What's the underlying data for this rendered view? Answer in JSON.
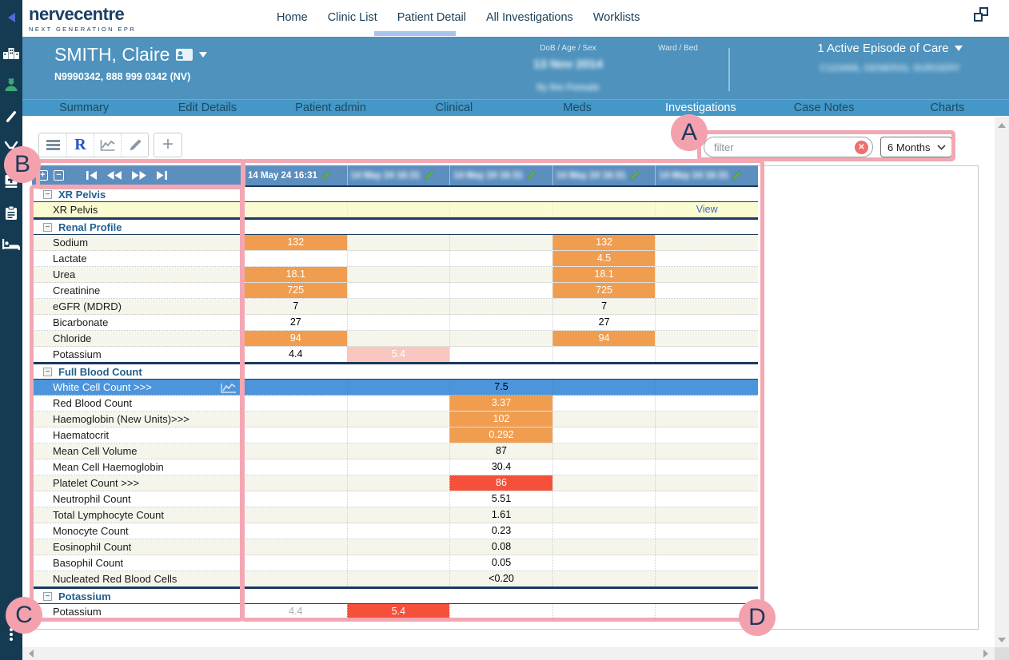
{
  "app": {
    "logo_title": "nervecentre",
    "logo_subtitle": "NEXT GENERATION EPR"
  },
  "top_nav": {
    "items": [
      {
        "label": "Home",
        "active": false
      },
      {
        "label": "Clinic List",
        "active": false
      },
      {
        "label": "Patient Detail",
        "active": true
      },
      {
        "label": "All Investigations",
        "active": false
      },
      {
        "label": "Worklists",
        "active": false
      }
    ]
  },
  "sidebar": {
    "icons": [
      "hospital-icon",
      "clinician-icon",
      "swab-icon",
      "instrument-icon",
      "first-aid-icon",
      "clipboard-icon",
      "bed-icon"
    ]
  },
  "patient_banner": {
    "name": "SMITH, Claire",
    "identifiers": "N9990342, 888 999 0342 (NV)",
    "dob_label": "DoB / Age / Sex",
    "dob_value": "13 Nov 2014",
    "age_sex_value": "9y 6m Female",
    "ward_label": "Ward / Bed",
    "episode_label": "1 Active Episode of Care",
    "episode_detail": "C123456, GENERAL SURGERY"
  },
  "subtabs": {
    "items": [
      "Summary",
      "Edit Details",
      "Patient admin",
      "Clinical",
      "Meds",
      "Investigations",
      "Case Notes",
      "Charts"
    ],
    "active": "Investigations"
  },
  "toolbar": {
    "r_button_label": "R",
    "filter_placeholder": "filter",
    "range_value": "6 Months"
  },
  "results_table": {
    "date_columns": [
      {
        "label": "14 May 24 16:31",
        "blurred": false
      },
      {
        "label": "14 May 24 16:31",
        "blurred": true
      },
      {
        "label": "14 May 24 16:31",
        "blurred": true
      },
      {
        "label": "14 May 24 16:31",
        "blurred": true
      },
      {
        "label": "14 May 24 16:31",
        "blurred": true
      }
    ],
    "groups": [
      {
        "name": "XR Pelvis",
        "rows": [
          {
            "label": "XR Pelvis",
            "yellow": true,
            "cells": [
              null,
              null,
              null,
              null,
              {
                "v": "View",
                "s": "link"
              }
            ]
          }
        ]
      },
      {
        "name": "Renal Profile",
        "rows": [
          {
            "label": "Sodium",
            "alt": true,
            "cells": [
              {
                "v": "132",
                "s": "orange"
              },
              null,
              null,
              {
                "v": "132",
                "s": "orange"
              },
              null
            ]
          },
          {
            "label": "Lactate",
            "cells": [
              null,
              null,
              null,
              {
                "v": "4.5",
                "s": "orange"
              },
              null
            ]
          },
          {
            "label": "Urea",
            "alt": true,
            "cells": [
              {
                "v": "18.1",
                "s": "orange"
              },
              null,
              null,
              {
                "v": "18.1",
                "s": "orange"
              },
              null
            ]
          },
          {
            "label": "Creatinine",
            "cells": [
              {
                "v": "725",
                "s": "orange"
              },
              null,
              null,
              {
                "v": "725",
                "s": "orange"
              },
              null
            ]
          },
          {
            "label": "eGFR (MDRD)",
            "alt": true,
            "cells": [
              {
                "v": "7"
              },
              null,
              null,
              {
                "v": "7"
              },
              null
            ]
          },
          {
            "label": "Bicarbonate",
            "cells": [
              {
                "v": "27"
              },
              null,
              null,
              {
                "v": "27"
              },
              null
            ]
          },
          {
            "label": "Chloride",
            "alt": true,
            "cells": [
              {
                "v": "94",
                "s": "orange"
              },
              null,
              null,
              {
                "v": "94",
                "s": "orange"
              },
              null
            ]
          },
          {
            "label": "Potassium",
            "cells": [
              {
                "v": "4.4"
              },
              {
                "v": "5.4",
                "s": "pink"
              },
              null,
              null,
              null
            ]
          }
        ]
      },
      {
        "name": "Full Blood Count",
        "rows": [
          {
            "label": "White Cell Count >>>",
            "selected": true,
            "chart_icon": true,
            "cells": [
              null,
              null,
              {
                "v": "7.5"
              },
              null,
              null
            ]
          },
          {
            "label": "Red Blood Count",
            "cells": [
              null,
              null,
              {
                "v": "3.37",
                "s": "orange"
              },
              null,
              null
            ]
          },
          {
            "label": "Haemoglobin (New Units)>>>",
            "alt": true,
            "cells": [
              null,
              null,
              {
                "v": "102",
                "s": "orange"
              },
              null,
              null
            ]
          },
          {
            "label": "Haematocrit",
            "cells": [
              null,
              null,
              {
                "v": "0.292",
                "s": "orange"
              },
              null,
              null
            ]
          },
          {
            "label": "Mean Cell Volume",
            "alt": true,
            "cells": [
              null,
              null,
              {
                "v": "87"
              },
              null,
              null
            ]
          },
          {
            "label": "Mean Cell Haemoglobin",
            "cells": [
              null,
              null,
              {
                "v": "30.4"
              },
              null,
              null
            ]
          },
          {
            "label": "Platelet Count >>>",
            "alt": true,
            "cells": [
              null,
              null,
              {
                "v": "86",
                "s": "red"
              },
              null,
              null
            ]
          },
          {
            "label": "Neutrophil Count",
            "cells": [
              null,
              null,
              {
                "v": "5.51"
              },
              null,
              null
            ]
          },
          {
            "label": "Total Lymphocyte Count",
            "alt": true,
            "cells": [
              null,
              null,
              {
                "v": "1.61"
              },
              null,
              null
            ]
          },
          {
            "label": "Monocyte Count",
            "cells": [
              null,
              null,
              {
                "v": "0.23"
              },
              null,
              null
            ]
          },
          {
            "label": "Eosinophil Count",
            "alt": true,
            "cells": [
              null,
              null,
              {
                "v": "0.08"
              },
              null,
              null
            ]
          },
          {
            "label": "Basophil Count",
            "cells": [
              null,
              null,
              {
                "v": "0.05"
              },
              null,
              null
            ]
          },
          {
            "label": "Nucleated Red Blood Cells",
            "alt": true,
            "cells": [
              null,
              null,
              {
                "v": "<0.20"
              },
              null,
              null
            ]
          }
        ]
      },
      {
        "name": "Potassium",
        "rows": [
          {
            "label": "Potassium",
            "cells": [
              {
                "v": "4.4",
                "s": "gray"
              },
              {
                "v": "5.4",
                "s": "red"
              },
              null,
              null,
              null
            ]
          }
        ]
      }
    ]
  },
  "annotations": [
    {
      "letter": "A"
    },
    {
      "letter": "B"
    },
    {
      "letter": "C"
    },
    {
      "letter": "D"
    }
  ],
  "colors": {
    "sidebar": "#143B52",
    "banner": "#4E92BD",
    "subtab_bar": "#4497C6",
    "grid_header": "#5C8EBE",
    "selected_row": "#4C95DC",
    "abnormal_orange": "#F09D4F",
    "abnormal_red": "#F4503A",
    "abnormal_pink": "#F8C7BF",
    "yellow_row": "#FBFBD2",
    "annotation_pink": "#F2A7B3",
    "link_blue": "#3E68C8",
    "group_text": "#20608F",
    "navy": "#1B3F63"
  }
}
